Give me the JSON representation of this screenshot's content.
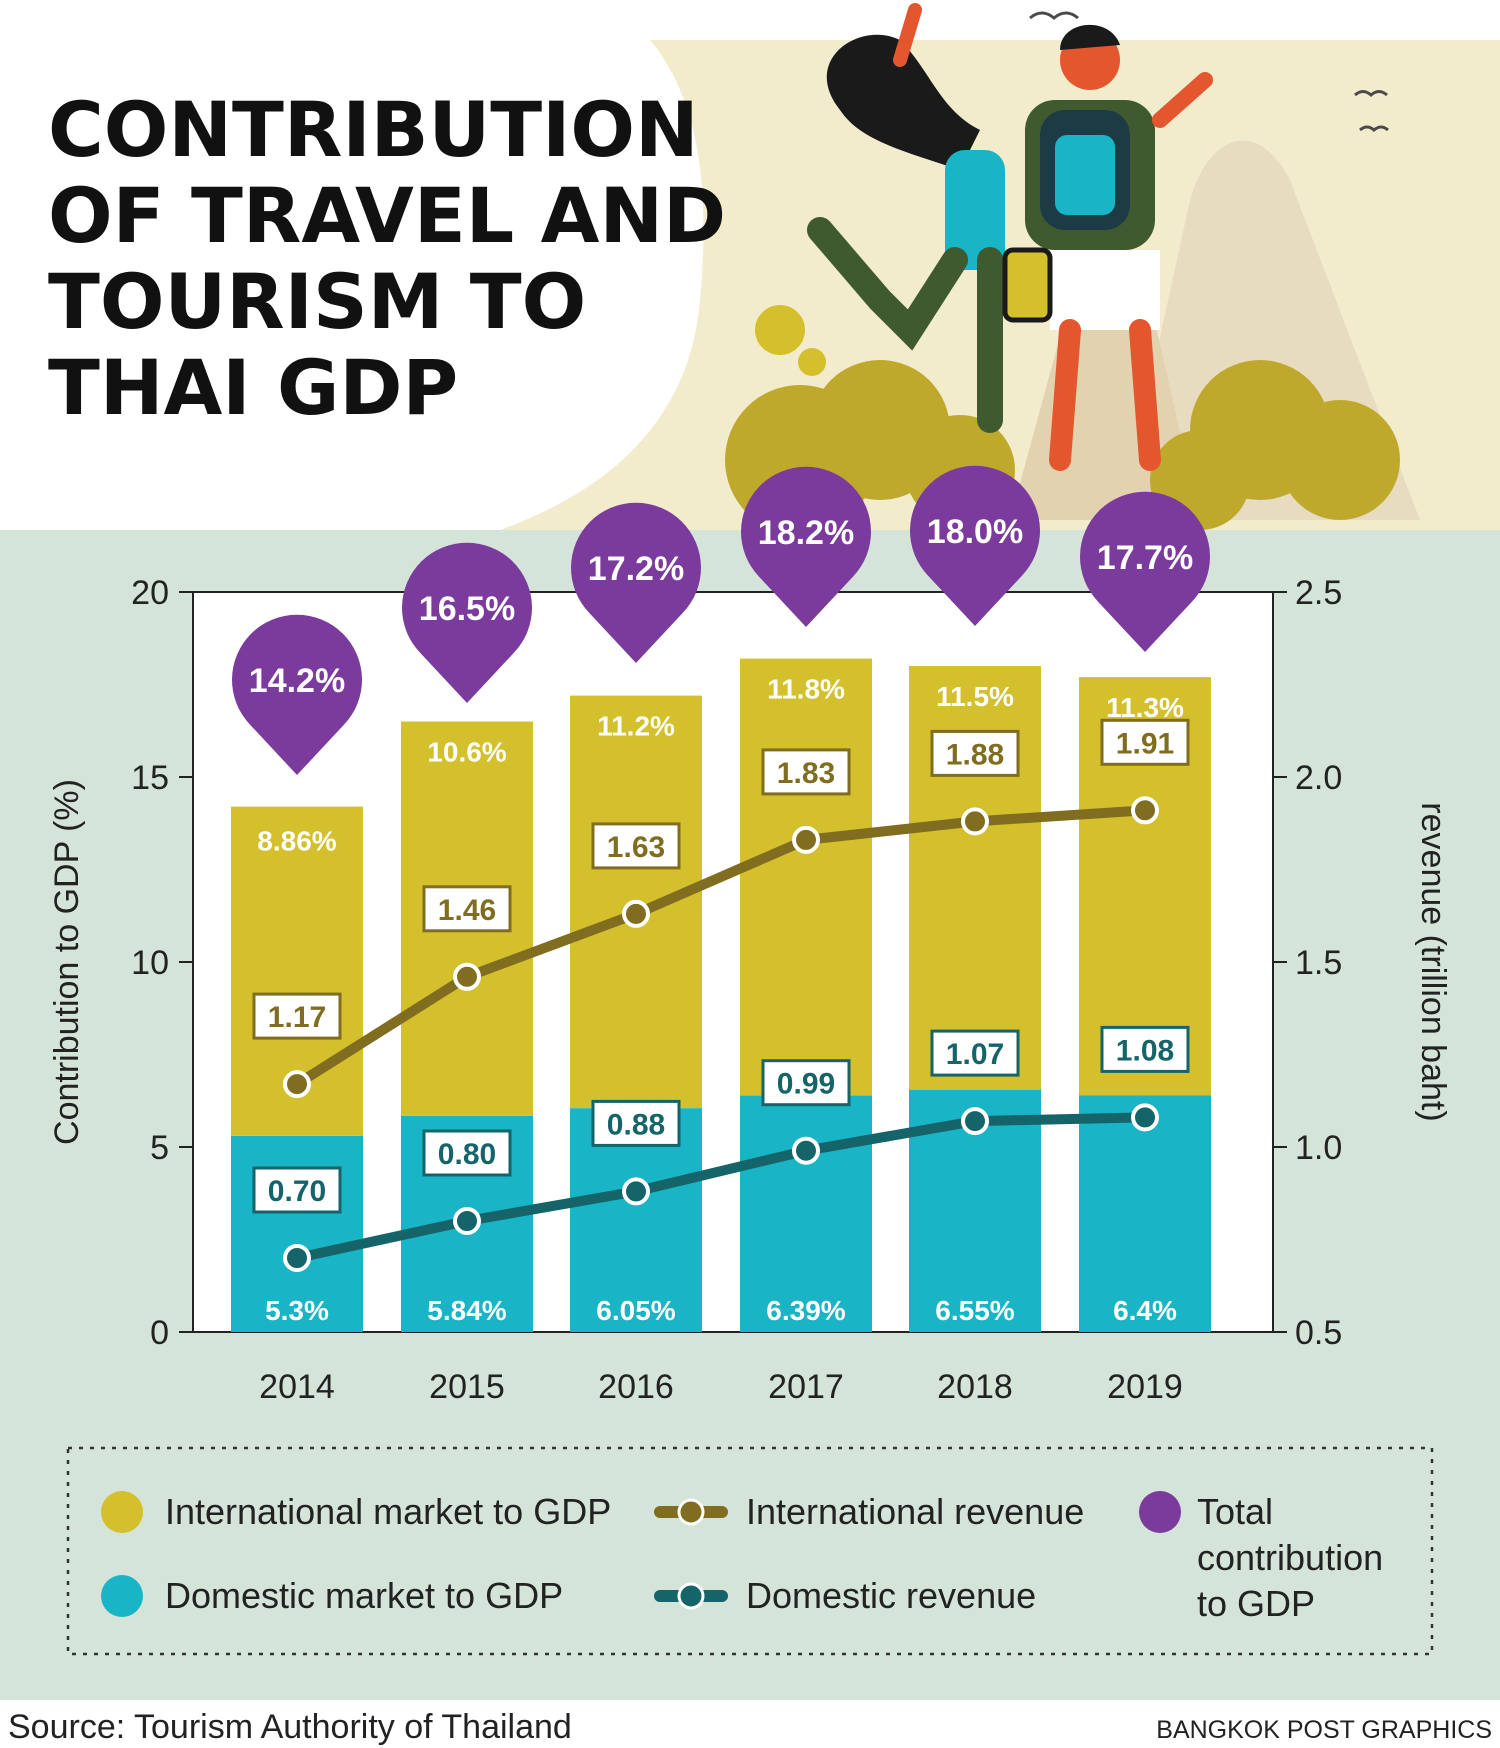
{
  "title_lines": [
    "CONTRIBUTION",
    "OF TRAVEL AND",
    "TOURISM TO",
    "THAI GDP"
  ],
  "colors": {
    "international": "#d4bf2c",
    "domestic": "#19b4c6",
    "intl_revenue_line": "#806d1f",
    "dom_revenue_line": "#14646a",
    "total": "#7b3b9d",
    "panel_bg": "#d5e4d9",
    "plot_bg": "#ffffff",
    "illus_bg": "#f2ebcc"
  },
  "chart_data": {
    "type": "bar",
    "stacked": true,
    "categories": [
      "2014",
      "2015",
      "2016",
      "2017",
      "2018",
      "2019"
    ],
    "series": [
      {
        "name": "Domestic market to GDP",
        "values": [
          5.3,
          5.84,
          6.05,
          6.39,
          6.55,
          6.4
        ],
        "labels": [
          "5.3%",
          "5.84%",
          "6.05%",
          "6.39%",
          "6.55%",
          "6.4%"
        ]
      },
      {
        "name": "International market to GDP",
        "values": [
          8.86,
          10.6,
          11.2,
          11.8,
          11.5,
          11.3
        ],
        "labels": [
          "8.86%",
          "10.6%",
          "11.2%",
          "11.8%",
          "11.5%",
          "11.3%"
        ]
      }
    ],
    "totals": {
      "name": "Total contribution to GDP",
      "values": [
        14.2,
        16.5,
        17.2,
        18.2,
        18.0,
        17.7
      ],
      "labels": [
        "14.2%",
        "16.5%",
        "17.2%",
        "18.2%",
        "18.0%",
        "17.7%"
      ]
    },
    "lines": [
      {
        "name": "International revenue",
        "axis": "right",
        "values": [
          1.17,
          1.46,
          1.63,
          1.83,
          1.88,
          1.91
        ],
        "labels": [
          "1.17",
          "1.46",
          "1.63",
          "1.83",
          "1.88",
          "1.91"
        ]
      },
      {
        "name": "Domestic revenue",
        "axis": "right",
        "values": [
          0.7,
          0.8,
          0.88,
          0.99,
          1.07,
          1.08
        ],
        "labels": [
          "0.70",
          "0.80",
          "0.88",
          "0.99",
          "1.07",
          "1.08"
        ]
      }
    ],
    "ylabel_left": "Contribution to GDP (%)",
    "ylabel_right": "revenue (trillion baht)",
    "ylim_left": [
      0,
      20
    ],
    "ylim_right": [
      0.5,
      2.5
    ],
    "yticks_left": [
      "0",
      "5",
      "10",
      "15",
      "20"
    ],
    "yticks_right": [
      "0.5",
      "1.0",
      "1.5",
      "2.0",
      "2.5"
    ],
    "legend_position": "bottom",
    "grid": false
  },
  "legend": [
    {
      "label": "International market to GDP",
      "icon": "yellow-dot-icon"
    },
    {
      "label": "International revenue",
      "icon": "olive-line-marker-icon"
    },
    {
      "label_lines": [
        "Total",
        "contribution",
        "to GDP"
      ],
      "icon": "purple-dot-icon"
    },
    {
      "label": "Domestic market to GDP",
      "icon": "cyan-dot-icon"
    },
    {
      "label": "Domestic revenue",
      "icon": "teal-line-marker-icon"
    }
  ],
  "footer": {
    "source": "Source: Tourism Authority of Thailand",
    "credit": "BANGKOK POST GRAPHICS"
  }
}
